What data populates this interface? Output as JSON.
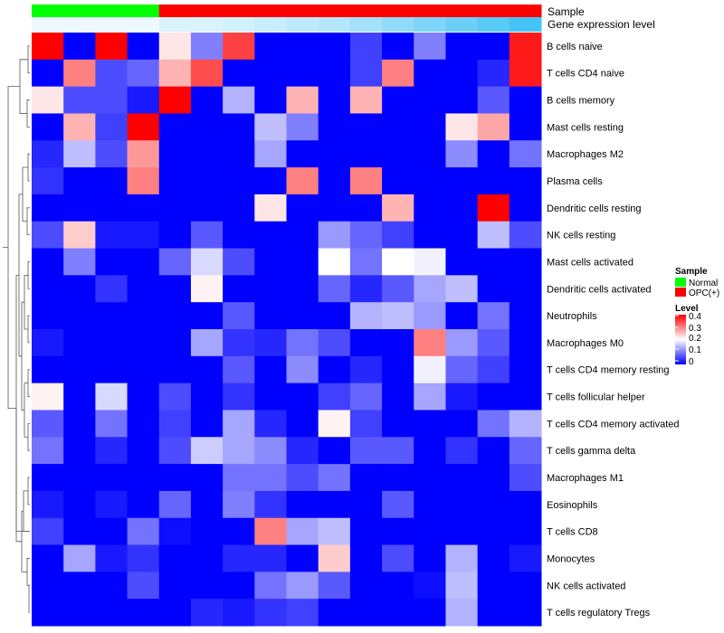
{
  "chart_data": {
    "type": "heatmap",
    "annotations": {
      "sample_label": "Sample",
      "level_label": "Gene expression level",
      "sample_groups": [
        "Normal",
        "Normal",
        "Normal",
        "Normal",
        "OPC(+)",
        "OPC(+)",
        "OPC(+)",
        "OPC(+)",
        "OPC(+)",
        "OPC(+)",
        "OPC(+)",
        "OPC(+)",
        "OPC(+)",
        "OPC(+)",
        "OPC(+)",
        "OPC(+)"
      ],
      "gene_expression_level": [
        0.05,
        0.05,
        0.05,
        0.05,
        0.1,
        0.1,
        0.12,
        0.15,
        0.18,
        0.2,
        0.25,
        0.3,
        0.35,
        0.4,
        0.45,
        0.5
      ]
    },
    "rows": [
      "B cells naive",
      "T cells CD4 naive",
      "B cells memory",
      "Mast cells resting",
      "Macrophages M2",
      "Plasma cells",
      "Dendritic cells resting",
      "NK cells resting",
      "Mast cells activated",
      "Dendritic cells activated",
      "Neutrophils",
      "Macrophages M0",
      "T cells CD4 memory resting",
      "T cells follicular helper",
      "T cells CD4 memory activated",
      "T cells gamma delta",
      "Macrophages M1",
      "Eosinophils",
      "T cells CD8",
      "Monocytes",
      "NK cells activated",
      "T cells regulatory  Tregs"
    ],
    "values": [
      [
        0.4,
        0.0,
        0.4,
        0.0,
        0.22,
        0.1,
        0.35,
        0.0,
        0.0,
        0.0,
        0.05,
        0.0,
        0.1,
        0.0,
        0.0,
        0.38
      ],
      [
        0.0,
        0.3,
        0.06,
        0.08,
        0.26,
        0.34,
        0.0,
        0.0,
        0.0,
        0.0,
        0.05,
        0.3,
        0.0,
        0.0,
        0.03,
        0.38
      ],
      [
        0.22,
        0.06,
        0.06,
        0.02,
        0.4,
        0.0,
        0.14,
        0.0,
        0.26,
        0.0,
        0.26,
        0.0,
        0.0,
        0.0,
        0.07,
        0.0
      ],
      [
        0.0,
        0.26,
        0.05,
        0.4,
        0.0,
        0.0,
        0.0,
        0.15,
        0.1,
        0.0,
        0.0,
        0.0,
        0.0,
        0.22,
        0.27,
        0.0
      ],
      [
        0.03,
        0.15,
        0.06,
        0.28,
        0.0,
        0.0,
        0.0,
        0.13,
        0.0,
        0.0,
        0.0,
        0.0,
        0.0,
        0.11,
        0.0,
        0.09
      ],
      [
        0.04,
        0.0,
        0.0,
        0.3,
        0.0,
        0.0,
        0.0,
        0.0,
        0.3,
        0.0,
        0.3,
        0.0,
        0.0,
        0.0,
        0.0,
        0.0
      ],
      [
        0.0,
        0.0,
        0.0,
        0.0,
        0.0,
        0.0,
        0.0,
        0.22,
        0.0,
        0.0,
        0.0,
        0.26,
        0.0,
        0.0,
        0.4,
        0.0
      ],
      [
        0.06,
        0.24,
        0.02,
        0.02,
        0.0,
        0.07,
        0.0,
        0.0,
        0.0,
        0.12,
        0.08,
        0.05,
        0.0,
        0.0,
        0.15,
        0.06
      ],
      [
        0.0,
        0.1,
        0.0,
        0.0,
        0.08,
        0.17,
        0.06,
        0.0,
        0.0,
        0.2,
        0.09,
        0.2,
        0.19,
        0.0,
        0.0,
        0.0
      ],
      [
        0.0,
        0.0,
        0.04,
        0.0,
        0.0,
        0.21,
        0.0,
        0.0,
        0.0,
        0.08,
        0.03,
        0.07,
        0.13,
        0.15,
        0.0,
        0.0
      ],
      [
        0.0,
        0.0,
        0.0,
        0.0,
        0.0,
        0.0,
        0.07,
        0.0,
        0.0,
        0.0,
        0.14,
        0.15,
        0.12,
        0.0,
        0.09,
        0.0
      ],
      [
        0.02,
        0.0,
        0.0,
        0.0,
        0.0,
        0.13,
        0.04,
        0.03,
        0.09,
        0.06,
        0.0,
        0.0,
        0.3,
        0.12,
        0.07,
        0.0
      ],
      [
        0.0,
        0.0,
        0.0,
        0.0,
        0.0,
        0.0,
        0.07,
        0.0,
        0.11,
        0.0,
        0.03,
        0.0,
        0.19,
        0.08,
        0.05,
        0.0
      ],
      [
        0.21,
        0.0,
        0.17,
        0.0,
        0.06,
        0.0,
        0.04,
        0.0,
        0.0,
        0.05,
        0.08,
        0.0,
        0.13,
        0.02,
        0.0,
        0.0
      ],
      [
        0.07,
        0.0,
        0.09,
        0.0,
        0.05,
        0.0,
        0.13,
        0.03,
        0.0,
        0.21,
        0.05,
        0.0,
        0.0,
        0.0,
        0.09,
        0.14
      ],
      [
        0.09,
        0.0,
        0.03,
        0.0,
        0.06,
        0.16,
        0.13,
        0.11,
        0.03,
        0.0,
        0.07,
        0.07,
        0.0,
        0.04,
        0.0,
        0.08
      ],
      [
        0.0,
        0.0,
        0.0,
        0.0,
        0.0,
        0.0,
        0.09,
        0.09,
        0.06,
        0.09,
        0.0,
        0.0,
        0.0,
        0.0,
        0.0,
        0.06
      ],
      [
        0.02,
        0.0,
        0.02,
        0.0,
        0.08,
        0.0,
        0.1,
        0.04,
        0.0,
        0.0,
        0.0,
        0.07,
        0.0,
        0.0,
        0.0,
        0.0
      ],
      [
        0.05,
        0.0,
        0.0,
        0.09,
        0.01,
        0.0,
        0.0,
        0.3,
        0.13,
        0.15,
        0.0,
        0.0,
        0.0,
        0.0,
        0.0,
        0.0
      ],
      [
        0.0,
        0.13,
        0.02,
        0.04,
        0.0,
        0.0,
        0.03,
        0.03,
        0.0,
        0.24,
        0.0,
        0.06,
        0.0,
        0.14,
        0.0,
        0.02
      ],
      [
        0.0,
        0.0,
        0.0,
        0.06,
        0.0,
        0.0,
        0.0,
        0.09,
        0.12,
        0.07,
        0.0,
        0.0,
        0.01,
        0.15,
        0.0,
        0.0
      ],
      [
        0.0,
        0.0,
        0.0,
        0.0,
        0.0,
        0.03,
        0.02,
        0.04,
        0.05,
        0.0,
        0.0,
        0.0,
        0.0,
        0.14,
        0.0,
        0.0
      ]
    ],
    "colorscale": {
      "min": 0,
      "mid": 0.2,
      "max": 0.4,
      "low_color": "#0000ff",
      "mid_color": "#ffffff",
      "high_color": "#ff0000"
    },
    "legend": {
      "sample_title": "Sample",
      "sample_items": [
        {
          "label": "Normal",
          "color": "#00ff00"
        },
        {
          "label": "OPC(+)",
          "color": "#ff0000"
        }
      ],
      "level_title": "Level",
      "level_ticks": [
        "0.4",
        "0.3",
        "0.2",
        "0.1",
        "0"
      ]
    }
  }
}
